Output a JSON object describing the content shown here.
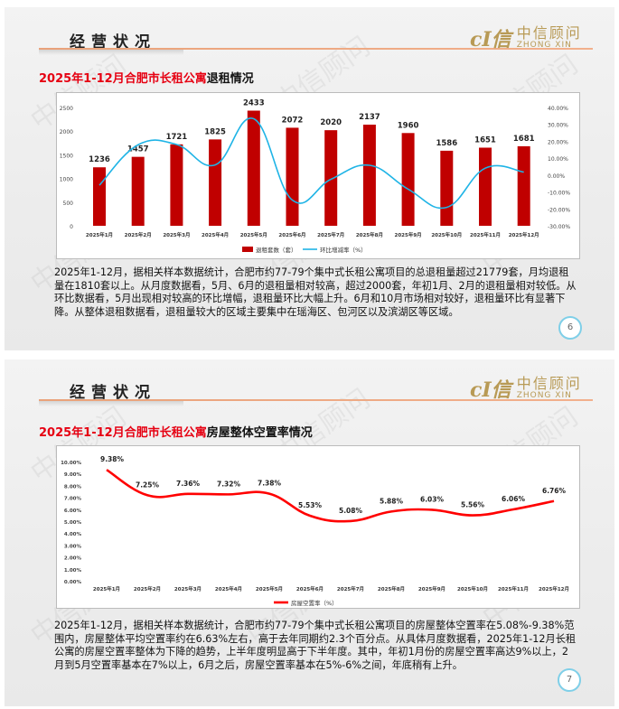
{
  "watermark": "中信顾问",
  "logo": {
    "mark": "cI信",
    "cn": "中信顾问",
    "en": "ZHONG XIN"
  },
  "slides": [
    {
      "header_title": "经营状况",
      "subtitle_red": "2025年1-12月合肥市长租公寓",
      "subtitle_black": "退租情况",
      "paragraph": "2025年1-12月，据相关样本数据统计，合肥市约77-79个集中式长租公寓项目的总退租量超过21779套，月均退租量在1810套以上。从月度数据看，5月、6月的退租量相对较高，超过2000套，年初1月、2月的退租量相对较低。从环比数据看，5月出现相对较高的环比增幅，退租量环比大幅上升。6月和10月市场相对较好，退租量环比有显著下降。从整体退租数据看，退租量较大的区域主要集中在瑶海区、包河区以及滨湖区等区域。",
      "page_number": "6"
    },
    {
      "header_title": "经营状况",
      "subtitle_red": "2025年1-12月合肥市长租公寓",
      "subtitle_black": "房屋整体空置率情况",
      "paragraph": "2025年1-12月，据相关样本数据统计，合肥市约77-79个集中式长租公寓项目的房屋整体空置率在5.08%-9.38%范围内，房屋整体平均空置率约在6.63%左右，高于去年同期约2.3个百分点。从具体月度数据看，2025年1-12月长租公寓的房屋空置率整体为下降的趋势，上半年度明显高于下半年度。其中，年初1月份的房屋空置率高达9%以上，2月到5月空置率基本在7%以上，6月之后，房屋空置率基本在5%-6%之间，年底稍有上升。",
      "page_number": "7"
    }
  ],
  "chart_data": [
    {
      "type": "bar+line",
      "categories": [
        "2025年1月",
        "2025年2月",
        "2025年3月",
        "2025年4月",
        "2025年5月",
        "2025年6月",
        "2025年7月",
        "2025年8月",
        "2025年9月",
        "2025年10月",
        "2025年11月",
        "2025年12月"
      ],
      "series": [
        {
          "name": "退租套数（套）",
          "type": "bar",
          "axis": "left",
          "color": "#c00000",
          "values": [
            1236,
            1457,
            1721,
            1825,
            2433,
            2072,
            2020,
            2137,
            1960,
            1586,
            1651,
            1681
          ],
          "data_labels": [
            "1236",
            "1457",
            "1721",
            "1825",
            "2433",
            "2072",
            "2020",
            "2137",
            "1960",
            "1586",
            "1651",
            "1681"
          ]
        },
        {
          "name": "环比增减率（%）",
          "type": "line",
          "axis": "right",
          "color": "#1fb4e6",
          "values": [
            -6.0,
            17.9,
            18.1,
            6.0,
            33.3,
            -14.8,
            -2.5,
            5.8,
            -8.3,
            -19.1,
            4.1,
            1.8
          ]
        }
      ],
      "left_axis": {
        "ylim": [
          0,
          2500
        ],
        "ticks": [
          "0",
          "500",
          "1000",
          "1500",
          "2000",
          "2500"
        ]
      },
      "right_axis": {
        "ylim": [
          -30,
          40
        ],
        "ticks": [
          "-30.00%",
          "-20.00%",
          "-10.00%",
          "0.00%",
          "10.00%",
          "20.00%",
          "30.00%",
          "40.00%"
        ]
      },
      "grid": false,
      "legend": "bottom"
    },
    {
      "type": "line",
      "categories": [
        "2025年1月",
        "2025年2月",
        "2025年3月",
        "2025年4月",
        "2025年5月",
        "2025年6月",
        "2025年7月",
        "2025年8月",
        "2025年9月",
        "2025年10月",
        "2025年11月",
        "2025年12月"
      ],
      "series": [
        {
          "name": "房屋空置率（%）",
          "color": "#ff0000",
          "values": [
            9.38,
            7.25,
            7.36,
            7.32,
            7.38,
            5.53,
            5.08,
            5.88,
            6.03,
            5.56,
            6.06,
            6.76
          ],
          "data_labels": [
            "9.38%",
            "7.25%",
            "7.36%",
            "7.32%",
            "7.38%",
            "5.53%",
            "5.08%",
            "5.88%",
            "6.03%",
            "5.56%",
            "6.06%",
            "6.76%"
          ]
        }
      ],
      "ylim": [
        0,
        10
      ],
      "ticks": [
        "0.00%",
        "1.00%",
        "2.00%",
        "3.00%",
        "4.00%",
        "5.00%",
        "6.00%",
        "7.00%",
        "8.00%",
        "9.00%",
        "10.00%"
      ],
      "grid": false,
      "legend": "bottom"
    }
  ]
}
